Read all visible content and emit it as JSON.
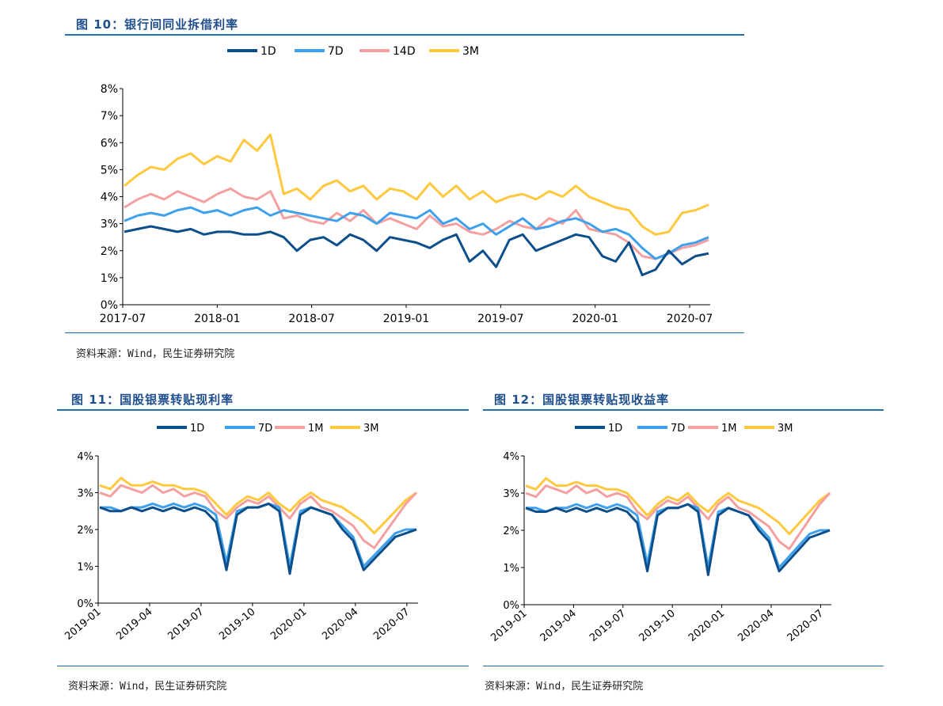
{
  "fig10": {
    "title": "图 10：银行间同业拆借利率",
    "source": "资料来源：Wind，民生证券研究院"
  },
  "fig11": {
    "title": "图 11：国股银票转贴现利率",
    "source": "资料来源：Wind，民生证券研究院"
  },
  "fig12": {
    "title": "图 12：国股银票转贴现收益率",
    "source": "资料来源：Wind，民生证券研究院"
  },
  "chart_data": [
    {
      "id": "fig10",
      "type": "line",
      "ylim": [
        0,
        8
      ],
      "yticks": [
        "0%",
        "1%",
        "2%",
        "3%",
        "4%",
        "5%",
        "6%",
        "7%",
        "8%"
      ],
      "xticks": [
        "2017-07",
        "2018-01",
        "2018-07",
        "2019-01",
        "2019-07",
        "2020-01",
        "2020-07"
      ],
      "legend_position": "top",
      "grid": false,
      "colors": {
        "1D": "#0d4f8b",
        "7D": "#3fa0ec",
        "14D": "#f4a0a0",
        "3M": "#ffc83d"
      },
      "series": [
        {
          "name": "1D",
          "values": [
            2.7,
            2.8,
            2.9,
            2.8,
            2.7,
            2.8,
            2.6,
            2.7,
            2.7,
            2.6,
            2.6,
            2.7,
            2.5,
            2.0,
            2.4,
            2.5,
            2.2,
            2.6,
            2.4,
            2.0,
            2.5,
            2.4,
            2.3,
            2.1,
            2.4,
            2.6,
            1.6,
            2.0,
            1.4,
            2.4,
            2.6,
            2.0,
            2.2,
            2.4,
            2.6,
            2.5,
            1.8,
            1.6,
            2.3,
            1.1,
            1.3,
            2.0,
            1.5,
            1.8,
            1.9
          ]
        },
        {
          "name": "7D",
          "values": [
            3.1,
            3.3,
            3.4,
            3.3,
            3.5,
            3.6,
            3.4,
            3.5,
            3.3,
            3.5,
            3.6,
            3.3,
            3.5,
            3.4,
            3.3,
            3.2,
            3.1,
            3.4,
            3.3,
            3.0,
            3.4,
            3.3,
            3.2,
            3.5,
            3.0,
            3.2,
            2.8,
            3.0,
            2.6,
            2.9,
            3.2,
            2.8,
            2.9,
            3.1,
            3.2,
            3.0,
            2.7,
            2.8,
            2.6,
            2.1,
            1.7,
            1.9,
            2.2,
            2.3,
            2.5
          ]
        },
        {
          "name": "14D",
          "values": [
            3.6,
            3.9,
            4.1,
            3.9,
            4.2,
            4.0,
            3.8,
            4.1,
            4.3,
            4.0,
            3.9,
            4.2,
            3.2,
            3.3,
            3.1,
            3.0,
            3.4,
            3.1,
            3.5,
            3.0,
            3.2,
            3.0,
            2.8,
            3.3,
            2.9,
            3.0,
            2.7,
            2.6,
            2.8,
            3.1,
            2.9,
            2.8,
            3.2,
            3.0,
            3.5,
            2.8,
            2.7,
            2.6,
            2.3,
            1.8,
            1.7,
            1.9,
            2.1,
            2.2,
            2.4
          ]
        },
        {
          "name": "3M",
          "values": [
            4.4,
            4.8,
            5.1,
            5.0,
            5.4,
            5.6,
            5.2,
            5.5,
            5.3,
            6.1,
            5.7,
            6.3,
            4.1,
            4.3,
            3.9,
            4.4,
            4.6,
            4.2,
            4.4,
            3.9,
            4.3,
            4.2,
            3.9,
            4.5,
            4.0,
            4.4,
            3.9,
            4.2,
            3.8,
            4.0,
            4.1,
            3.9,
            4.2,
            4.0,
            4.4,
            4.0,
            3.8,
            3.6,
            3.5,
            2.9,
            2.6,
            2.7,
            3.4,
            3.5,
            3.7
          ]
        }
      ]
    },
    {
      "id": "fig11",
      "type": "line",
      "ylim": [
        0,
        4
      ],
      "yticks": [
        "0%",
        "1%",
        "2%",
        "3%",
        "4%"
      ],
      "xticks": [
        "2019-01",
        "2019-04",
        "2019-07",
        "2019-10",
        "2020-01",
        "2020-04",
        "2020-07"
      ],
      "legend_position": "top",
      "grid": false,
      "colors": {
        "1D": "#0d4f8b",
        "7D": "#3fa0ec",
        "1M": "#f4a0a0",
        "3M": "#ffc83d"
      },
      "series": [
        {
          "name": "1D",
          "values": [
            2.6,
            2.5,
            2.5,
            2.6,
            2.5,
            2.6,
            2.5,
            2.6,
            2.5,
            2.6,
            2.5,
            2.2,
            0.9,
            2.4,
            2.6,
            2.6,
            2.7,
            2.5,
            0.8,
            2.4,
            2.6,
            2.5,
            2.4,
            2.0,
            1.7,
            0.9,
            1.2,
            1.5,
            1.8,
            1.9,
            2.0
          ]
        },
        {
          "name": "7D",
          "values": [
            2.6,
            2.6,
            2.5,
            2.6,
            2.6,
            2.7,
            2.6,
            2.7,
            2.6,
            2.7,
            2.6,
            2.4,
            1.1,
            2.5,
            2.6,
            2.6,
            2.7,
            2.6,
            1.0,
            2.5,
            2.6,
            2.5,
            2.4,
            2.1,
            1.8,
            1.0,
            1.3,
            1.6,
            1.9,
            2.0,
            2.0
          ]
        },
        {
          "name": "1M",
          "values": [
            3.0,
            2.9,
            3.2,
            3.1,
            3.0,
            3.2,
            3.0,
            3.1,
            2.9,
            3.0,
            2.9,
            2.5,
            2.3,
            2.6,
            2.8,
            2.7,
            2.9,
            2.6,
            2.3,
            2.7,
            2.9,
            2.6,
            2.5,
            2.3,
            2.1,
            1.7,
            1.5,
            1.9,
            2.3,
            2.7,
            3.0
          ]
        },
        {
          "name": "3M",
          "values": [
            3.2,
            3.1,
            3.4,
            3.2,
            3.2,
            3.3,
            3.2,
            3.2,
            3.1,
            3.1,
            3.0,
            2.7,
            2.4,
            2.7,
            2.9,
            2.8,
            3.0,
            2.7,
            2.5,
            2.8,
            3.0,
            2.8,
            2.7,
            2.6,
            2.4,
            2.2,
            1.9,
            2.2,
            2.5,
            2.8,
            3.0
          ]
        }
      ]
    },
    {
      "id": "fig12",
      "type": "line",
      "ylim": [
        0,
        4
      ],
      "yticks": [
        "0%",
        "1%",
        "2%",
        "3%",
        "4%"
      ],
      "xticks": [
        "2019-01",
        "2019-04",
        "2019-07",
        "2019-10",
        "2020-01",
        "2020-04",
        "2020-07"
      ],
      "legend_position": "top",
      "grid": false,
      "colors": {
        "1D": "#0d4f8b",
        "7D": "#3fa0ec",
        "1M": "#f4a0a0",
        "3M": "#ffc83d"
      },
      "series": [
        {
          "name": "1D",
          "values": [
            2.6,
            2.5,
            2.5,
            2.6,
            2.5,
            2.6,
            2.5,
            2.6,
            2.5,
            2.6,
            2.5,
            2.2,
            0.9,
            2.4,
            2.6,
            2.6,
            2.7,
            2.5,
            0.8,
            2.4,
            2.6,
            2.5,
            2.4,
            2.0,
            1.7,
            0.9,
            1.2,
            1.5,
            1.8,
            1.9,
            2.0
          ]
        },
        {
          "name": "7D",
          "values": [
            2.6,
            2.6,
            2.5,
            2.6,
            2.6,
            2.7,
            2.6,
            2.7,
            2.6,
            2.7,
            2.6,
            2.4,
            1.1,
            2.5,
            2.6,
            2.6,
            2.7,
            2.6,
            1.0,
            2.5,
            2.6,
            2.5,
            2.4,
            2.1,
            1.8,
            1.0,
            1.3,
            1.6,
            1.9,
            2.0,
            2.0
          ]
        },
        {
          "name": "1M",
          "values": [
            3.0,
            2.9,
            3.2,
            3.1,
            3.0,
            3.2,
            3.0,
            3.1,
            2.9,
            3.0,
            2.9,
            2.5,
            2.3,
            2.6,
            2.8,
            2.7,
            2.9,
            2.6,
            2.3,
            2.7,
            2.9,
            2.6,
            2.5,
            2.3,
            2.1,
            1.7,
            1.5,
            1.9,
            2.3,
            2.7,
            3.0
          ]
        },
        {
          "name": "3M",
          "values": [
            3.2,
            3.1,
            3.4,
            3.2,
            3.2,
            3.3,
            3.2,
            3.2,
            3.1,
            3.1,
            3.0,
            2.7,
            2.4,
            2.7,
            2.9,
            2.8,
            3.0,
            2.7,
            2.5,
            2.8,
            3.0,
            2.8,
            2.7,
            2.6,
            2.4,
            2.2,
            1.9,
            2.2,
            2.5,
            2.8,
            3.0
          ]
        }
      ]
    }
  ]
}
